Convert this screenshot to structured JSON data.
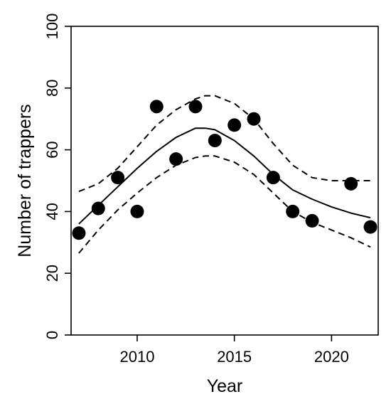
{
  "chart_data": {
    "type": "scatter",
    "title": "",
    "xlabel": "Year",
    "ylabel": "Number of trappers",
    "xlim": [
      2006.6,
      2022.4
    ],
    "ylim": [
      0,
      100
    ],
    "x_ticks": [
      2010,
      2015,
      2020
    ],
    "y_ticks": [
      0,
      20,
      40,
      60,
      80,
      100
    ],
    "x_tick_labels": [
      "2010",
      "2015",
      "2020"
    ],
    "y_tick_labels": [
      "0",
      "20",
      "40",
      "60",
      "80",
      "100"
    ],
    "grid": false,
    "legend": "none",
    "series": [
      {
        "type": "scatter",
        "x": [
          2007,
          2008,
          2009,
          2010,
          2011,
          2012,
          2013,
          2014,
          2015,
          2016,
          2017,
          2018,
          2019,
          2021,
          2022
        ],
        "y": [
          33,
          41,
          51,
          40,
          74,
          57,
          74,
          63,
          68,
          70,
          51,
          40,
          37,
          49,
          35
        ],
        "color": "#000000"
      },
      {
        "type": "line",
        "style": "solid",
        "x": [
          2007,
          2008,
          2009,
          2010,
          2011,
          2012,
          2013,
          2013.5,
          2014,
          2015,
          2016,
          2017,
          2018,
          2019,
          2020,
          2021,
          2022
        ],
        "y": [
          36,
          42,
          48,
          54,
          59.5,
          64,
          67,
          67,
          66.5,
          63,
          58,
          52,
          47,
          44,
          41.5,
          39.5,
          38
        ],
        "color": "#000000"
      },
      {
        "type": "line",
        "style": "dashed",
        "x": [
          2007,
          2008,
          2009,
          2010,
          2011,
          2012,
          2013,
          2013.5,
          2014,
          2015,
          2016,
          2017,
          2018,
          2019,
          2020,
          2021,
          2022
        ],
        "y": [
          46.5,
          49,
          54,
          61,
          68,
          73,
          76.5,
          77.5,
          77.5,
          75,
          70,
          62,
          55,
          51,
          50,
          50,
          50
        ],
        "color": "#000000"
      },
      {
        "type": "line",
        "style": "dashed",
        "x": [
          2007,
          2008,
          2009,
          2010,
          2011,
          2012,
          2013,
          2013.5,
          2014,
          2015,
          2016,
          2017,
          2018,
          2019,
          2020,
          2021,
          2022
        ],
        "y": [
          26.5,
          34,
          40.5,
          46,
          51,
          55,
          57.5,
          58,
          58,
          56,
          52,
          46,
          40,
          36.5,
          34,
          31.5,
          28.5
        ],
        "color": "#000000"
      }
    ]
  }
}
